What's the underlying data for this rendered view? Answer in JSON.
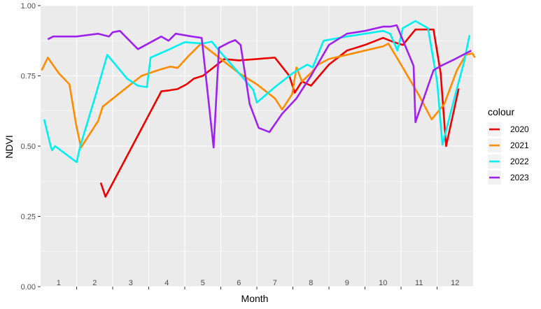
{
  "chart_data": {
    "type": "line",
    "title": "",
    "xlabel": "Month",
    "ylabel": "NDVI",
    "ylim": [
      0,
      1
    ],
    "xlim": [
      0.5,
      12.5
    ],
    "yticks": [
      0,
      0.25,
      0.5,
      0.75,
      1
    ],
    "ytick_labels": [
      "0.00",
      "0.25",
      "0.50",
      "0.75",
      "1.00"
    ],
    "month_labels": [
      "1",
      "2",
      "3",
      "4",
      "5",
      "6",
      "7",
      "8",
      "9",
      "10",
      "11",
      "12"
    ],
    "grid": true,
    "legend": {
      "title": "colour",
      "position": "right"
    },
    "series": [
      {
        "name": "2020",
        "color": "#ee0000",
        "points": [
          [
            2.17,
            0.37
          ],
          [
            2.3,
            0.32
          ],
          [
            3.85,
            0.695
          ],
          [
            4.05,
            0.698
          ],
          [
            4.3,
            0.703
          ],
          [
            4.55,
            0.72
          ],
          [
            4.75,
            0.74
          ],
          [
            5.0,
            0.75
          ],
          [
            5.3,
            0.78
          ],
          [
            5.6,
            0.81
          ],
          [
            6.0,
            0.805
          ],
          [
            6.5,
            0.81
          ],
          [
            7.0,
            0.815
          ],
          [
            7.4,
            0.75
          ],
          [
            7.55,
            0.69
          ],
          [
            7.75,
            0.73
          ],
          [
            8.0,
            0.715
          ],
          [
            8.5,
            0.79
          ],
          [
            9.0,
            0.84
          ],
          [
            9.5,
            0.86
          ],
          [
            10.0,
            0.885
          ],
          [
            10.3,
            0.87
          ],
          [
            10.55,
            0.86
          ],
          [
            10.9,
            0.915
          ],
          [
            11.1,
            0.915
          ],
          [
            11.4,
            0.915
          ],
          [
            11.6,
            0.76
          ],
          [
            11.75,
            0.5
          ],
          [
            12.1,
            0.705
          ]
        ]
      },
      {
        "name": "2021",
        "color": "#ff8c00",
        "points": [
          [
            0.53,
            0.77
          ],
          [
            0.7,
            0.815
          ],
          [
            1.0,
            0.76
          ],
          [
            1.3,
            0.72
          ],
          [
            1.48,
            0.58
          ],
          [
            1.62,
            0.495
          ],
          [
            2.1,
            0.59
          ],
          [
            2.22,
            0.64
          ],
          [
            3.0,
            0.72
          ],
          [
            3.3,
            0.75
          ],
          [
            3.75,
            0.77
          ],
          [
            4.1,
            0.783
          ],
          [
            4.3,
            0.778
          ],
          [
            4.6,
            0.82
          ],
          [
            4.95,
            0.865
          ],
          [
            5.3,
            0.83
          ],
          [
            5.6,
            0.8
          ],
          [
            6.0,
            0.76
          ],
          [
            6.5,
            0.72
          ],
          [
            7.0,
            0.67
          ],
          [
            7.2,
            0.63
          ],
          [
            7.48,
            0.685
          ],
          [
            7.6,
            0.78
          ],
          [
            7.75,
            0.73
          ],
          [
            8.0,
            0.76
          ],
          [
            8.2,
            0.79
          ],
          [
            8.5,
            0.81
          ],
          [
            9.0,
            0.825
          ],
          [
            9.5,
            0.84
          ],
          [
            10.0,
            0.855
          ],
          [
            10.15,
            0.865
          ],
          [
            10.5,
            0.79
          ],
          [
            11.0,
            0.68
          ],
          [
            11.35,
            0.595
          ],
          [
            11.7,
            0.65
          ],
          [
            12.05,
            0.77
          ],
          [
            12.3,
            0.825
          ],
          [
            12.48,
            0.83
          ],
          [
            12.55,
            0.815
          ]
        ]
      },
      {
        "name": "2022",
        "color": "#00f0f0",
        "points": [
          [
            0.6,
            0.595
          ],
          [
            0.78,
            0.5
          ],
          [
            0.82,
            0.485
          ],
          [
            0.9,
            0.5
          ],
          [
            1.5,
            0.443
          ],
          [
            1.6,
            0.5
          ],
          [
            2.0,
            0.67
          ],
          [
            2.35,
            0.825
          ],
          [
            2.9,
            0.74
          ],
          [
            3.2,
            0.715
          ],
          [
            3.45,
            0.71
          ],
          [
            3.55,
            0.815
          ],
          [
            4.0,
            0.84
          ],
          [
            4.5,
            0.87
          ],
          [
            5.0,
            0.865
          ],
          [
            5.25,
            0.872
          ],
          [
            5.45,
            0.84
          ],
          [
            6.0,
            0.76
          ],
          [
            6.4,
            0.7
          ],
          [
            6.5,
            0.655
          ],
          [
            7.0,
            0.71
          ],
          [
            7.5,
            0.76
          ],
          [
            7.9,
            0.79
          ],
          [
            8.05,
            0.78
          ],
          [
            8.35,
            0.875
          ],
          [
            9.0,
            0.89
          ],
          [
            9.5,
            0.9
          ],
          [
            10.0,
            0.91
          ],
          [
            10.2,
            0.9
          ],
          [
            10.4,
            0.84
          ],
          [
            10.55,
            0.92
          ],
          [
            10.9,
            0.945
          ],
          [
            11.25,
            0.92
          ],
          [
            11.5,
            0.73
          ],
          [
            11.65,
            0.505
          ],
          [
            11.8,
            0.58
          ],
          [
            12.0,
            0.68
          ],
          [
            12.25,
            0.8
          ],
          [
            12.4,
            0.895
          ]
        ]
      },
      {
        "name": "2023",
        "color": "#a020f0",
        "points": [
          [
            0.7,
            0.88
          ],
          [
            0.85,
            0.89
          ],
          [
            1.3,
            0.89
          ],
          [
            1.5,
            0.89
          ],
          [
            2.1,
            0.9
          ],
          [
            2.4,
            0.89
          ],
          [
            2.5,
            0.905
          ],
          [
            2.7,
            0.91
          ],
          [
            3.2,
            0.845
          ],
          [
            3.85,
            0.89
          ],
          [
            4.05,
            0.875
          ],
          [
            4.25,
            0.9
          ],
          [
            4.7,
            0.89
          ],
          [
            4.97,
            0.885
          ],
          [
            5.3,
            0.495
          ],
          [
            5.45,
            0.85
          ],
          [
            5.75,
            0.87
          ],
          [
            5.9,
            0.877
          ],
          [
            6.05,
            0.86
          ],
          [
            6.3,
            0.65
          ],
          [
            6.55,
            0.565
          ],
          [
            6.85,
            0.55
          ],
          [
            7.2,
            0.615
          ],
          [
            7.6,
            0.67
          ],
          [
            8.0,
            0.75
          ],
          [
            8.5,
            0.86
          ],
          [
            9.0,
            0.9
          ],
          [
            9.5,
            0.91
          ],
          [
            10.0,
            0.925
          ],
          [
            10.2,
            0.925
          ],
          [
            10.38,
            0.93
          ],
          [
            10.85,
            0.785
          ],
          [
            10.9,
            0.585
          ],
          [
            11.4,
            0.77
          ],
          [
            11.6,
            0.785
          ],
          [
            12.0,
            0.81
          ],
          [
            12.45,
            0.84
          ]
        ]
      }
    ]
  }
}
